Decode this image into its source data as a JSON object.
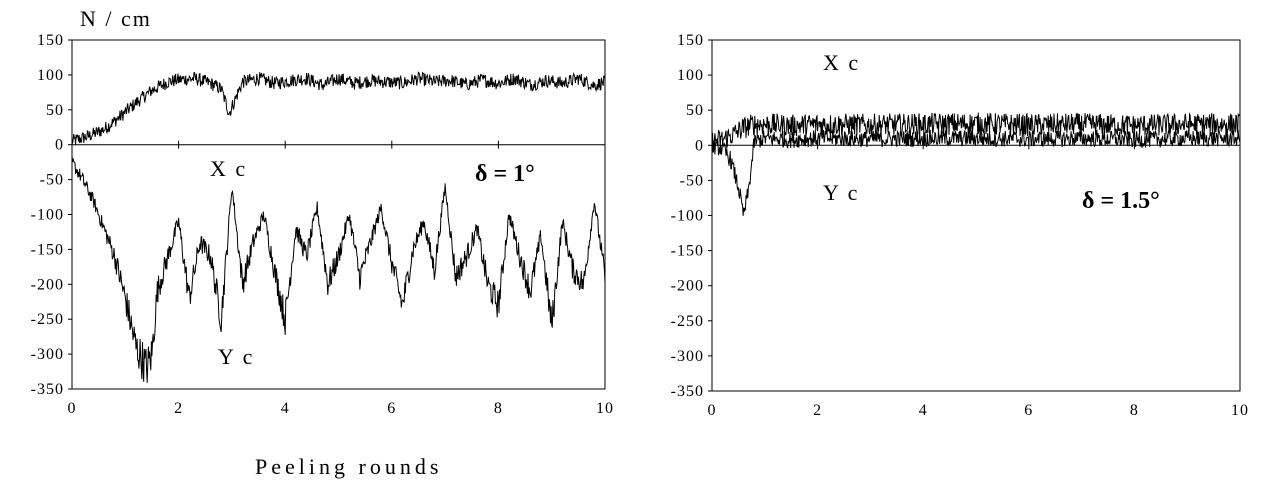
{
  "unit_label": "N / cm",
  "x_axis_label": "Peeling rounds",
  "chart_data": [
    {
      "type": "line",
      "annotation": "δ = 1°",
      "xlim": [
        0,
        10
      ],
      "ylim": [
        -350,
        150
      ],
      "x_ticks": [
        "0",
        "2",
        "4",
        "6",
        "8",
        "10"
      ],
      "y_ticks": [
        "150",
        "100",
        "50",
        "0",
        "-50",
        "-100",
        "-150",
        "-200",
        "-250",
        "-300",
        "-350"
      ],
      "grid": false,
      "series": [
        {
          "name": "X c",
          "x": [
            0,
            0.3,
            0.6,
            0.9,
            1.2,
            1.5,
            1.8,
            2.0,
            2.3,
            2.6,
            2.8,
            2.95,
            3.2,
            3.5,
            3.8,
            4.1,
            4.4,
            4.7,
            5.0,
            5.3,
            5.6,
            5.9,
            6.2,
            6.5,
            6.8,
            7.1,
            7.4,
            7.7,
            8.0,
            8.3,
            8.6,
            8.9,
            9.2,
            9.5,
            9.8,
            10.0
          ],
          "values": [
            5,
            12,
            22,
            40,
            60,
            78,
            90,
            93,
            95,
            88,
            80,
            45,
            90,
            95,
            88,
            92,
            95,
            85,
            95,
            88,
            92,
            90,
            88,
            95,
            90,
            92,
            86,
            93,
            88,
            95,
            86,
            92,
            88,
            95,
            85,
            90
          ]
        },
        {
          "name": "Y c",
          "x": [
            0,
            0.2,
            0.4,
            0.6,
            0.8,
            1.0,
            1.2,
            1.4,
            1.5,
            1.6,
            1.8,
            2.0,
            2.2,
            2.4,
            2.6,
            2.8,
            3.0,
            3.2,
            3.4,
            3.6,
            3.8,
            4.0,
            4.2,
            4.4,
            4.6,
            4.8,
            5.0,
            5.2,
            5.4,
            5.6,
            5.8,
            6.0,
            6.2,
            6.4,
            6.6,
            6.8,
            7.0,
            7.2,
            7.4,
            7.6,
            7.8,
            8.0,
            8.2,
            8.4,
            8.6,
            8.8,
            9.0,
            9.2,
            9.4,
            9.6,
            9.8,
            10.0
          ],
          "values": [
            -25,
            -50,
            -80,
            -120,
            -160,
            -220,
            -290,
            -320,
            -300,
            -210,
            -160,
            -110,
            -220,
            -140,
            -160,
            -250,
            -60,
            -200,
            -140,
            -100,
            -180,
            -250,
            -120,
            -160,
            -90,
            -200,
            -160,
            -100,
            -190,
            -140,
            -90,
            -170,
            -230,
            -150,
            -110,
            -180,
            -60,
            -190,
            -160,
            -120,
            -200,
            -230,
            -100,
            -160,
            -210,
            -130,
            -260,
            -110,
            -180,
            -200,
            -80,
            -190
          ]
        }
      ]
    },
    {
      "type": "line",
      "annotation": "δ = 1.5°",
      "xlim": [
        0,
        10
      ],
      "ylim": [
        -350,
        150
      ],
      "x_ticks": [
        "0",
        "2",
        "4",
        "6",
        "8",
        "10"
      ],
      "y_ticks": [
        "150",
        "100",
        "50",
        "0",
        "-50",
        "-100",
        "-150",
        "-200",
        "-250",
        "-300",
        "-350"
      ],
      "grid": false,
      "series": [
        {
          "name": "X c",
          "x": [
            0,
            0.2,
            0.4,
            0.6,
            0.8,
            1.0,
            1.5,
            2,
            3,
            4,
            5,
            6,
            7,
            8,
            9,
            10
          ],
          "values": [
            5,
            8,
            15,
            25,
            30,
            30,
            28,
            30,
            29,
            30,
            31,
            29,
            30,
            28,
            30,
            30
          ],
          "band": 20
        },
        {
          "name": "Y c",
          "x": [
            0,
            0.2,
            0.35,
            0.5,
            0.6,
            0.7,
            0.8,
            1.0,
            1.5,
            2,
            3,
            4,
            5,
            6,
            7,
            8,
            9,
            10
          ],
          "values": [
            0,
            -5,
            -20,
            -60,
            -100,
            -60,
            5,
            10,
            8,
            10,
            9,
            10,
            10,
            9,
            10,
            8,
            10,
            10
          ],
          "band": 15
        }
      ]
    }
  ]
}
